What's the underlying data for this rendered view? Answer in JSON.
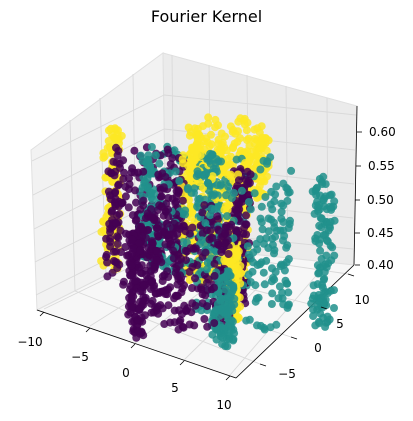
{
  "chart_data": {
    "type": "scatter",
    "title": "Fourier Kernel",
    "projection": "3d",
    "xlabel": "",
    "ylabel": "",
    "zlabel": "",
    "x_ticks": [
      "−10",
      "−5",
      "0",
      "5",
      "10"
    ],
    "y_ticks": [
      "−5",
      "0",
      "5",
      "10"
    ],
    "z_ticks": [
      "0.40",
      "0.45",
      "0.50",
      "0.55",
      "0.60"
    ],
    "xlim": [
      -10,
      10
    ],
    "ylim": [
      -7.5,
      12
    ],
    "zlim": [
      0.4,
      0.62
    ],
    "grid": true,
    "legend": "none",
    "colors": {
      "class_0": "#440154",
      "class_1": "#21918c",
      "class_2": "#fde725"
    },
    "series": [
      {
        "clusters": [
          {
            "kind": "ring",
            "cx": -4.5,
            "cy": 0.5,
            "r": 3.0,
            "zmin": 0.43,
            "zmax": 0.6
          },
          {
            "kind": "ring",
            "cx": 1.5,
            "cy": -2.0,
            "r": 3.2,
            "zmin": 0.42,
            "zmax": 0.56
          },
          {
            "kind": "column",
            "cx": -1.0,
            "cy": -6.0,
            "r": 0.8,
            "zmin": 0.4,
            "zmax": 0.55
          },
          {
            "kind": "column",
            "cx": 3.0,
            "cy": 3.5,
            "r": 0.8,
            "zmin": 0.42,
            "zmax": 0.6
          }
        ]
      },
      {
        "clusters": [
          {
            "kind": "ring",
            "cx": 3.0,
            "cy": 4.0,
            "r": 3.5,
            "zmin": 0.4,
            "zmax": 0.6
          },
          {
            "kind": "ring",
            "cx": -2.5,
            "cy": 2.5,
            "r": 3.0,
            "zmin": 0.45,
            "zmax": 0.6
          },
          {
            "kind": "column",
            "cx": 9.0,
            "cy": 7.0,
            "r": 1.0,
            "zmin": 0.4,
            "zmax": 0.6
          },
          {
            "kind": "column",
            "cx": 5.0,
            "cy": -2.0,
            "r": 1.0,
            "zmin": 0.4,
            "zmax": 0.5
          }
        ]
      },
      {
        "clusters": [
          {
            "kind": "ring",
            "cx": -2.0,
            "cy": 9.0,
            "r": 3.0,
            "zmin": 0.52,
            "zmax": 0.61
          },
          {
            "kind": "column",
            "cx": -9.0,
            "cy": 2.0,
            "r": 0.8,
            "zmin": 0.42,
            "zmax": 0.61
          },
          {
            "kind": "ring",
            "cx": 0.0,
            "cy": 4.0,
            "r": 2.5,
            "zmin": 0.44,
            "zmax": 0.6
          },
          {
            "kind": "column",
            "cx": 4.5,
            "cy": 0.0,
            "r": 0.8,
            "zmin": 0.42,
            "zmax": 0.52
          }
        ]
      }
    ]
  }
}
